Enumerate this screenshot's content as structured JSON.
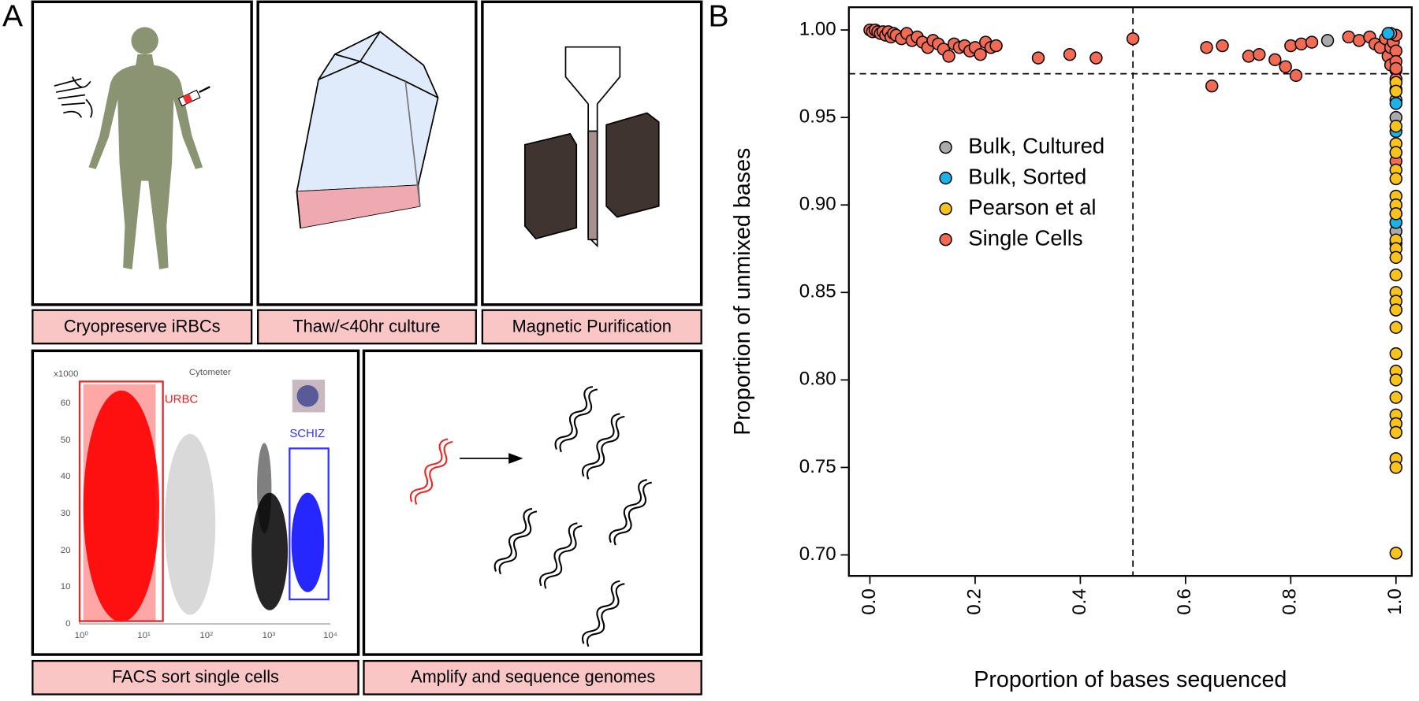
{
  "panel_a": {
    "label": "A",
    "steps": [
      "Cryopreserve iRBCs",
      "Thaw/<40hr culture",
      "Magnetic Purification",
      "FACS sort single cells",
      "Amplify and sequence genomes"
    ],
    "facs": {
      "title": "Cytometer",
      "multiplier": "x1000",
      "y_ticks": [
        "0",
        "10",
        "20",
        "30",
        "40",
        "50",
        "60"
      ],
      "x_ticks": [
        "10⁰",
        "10¹",
        "10²",
        "10³",
        "10⁴"
      ],
      "gates": [
        "URBC",
        "SCHIZ"
      ]
    }
  },
  "chart_data": {
    "type": "scatter",
    "panel_label": "B",
    "x_label": "Proportion of bases sequenced",
    "y_label": "Proportion of unmixed bases",
    "xlim": [
      -0.04,
      1.03
    ],
    "ylim": [
      0.688,
      1.013
    ],
    "xticks": [
      {
        "value": 0,
        "label": "0.0"
      },
      0.2,
      0.4,
      0.6,
      0.8,
      {
        "value": 1,
        "label": "1.0"
      }
    ],
    "yticks": [
      0.95,
      {
        "value": 0.9,
        "label": "0.90"
      },
      0.85,
      {
        "value": 0.8,
        "label": "0.80"
      },
      0.75,
      {
        "value": 0.7,
        "label": "0.70"
      },
      {
        "value": 1,
        "label": "1.00"
      }
    ],
    "reference_lines": {
      "x": 0.5,
      "y": 0.975
    },
    "legend": "upper left",
    "series": [
      {
        "name": "Bulk, Cultured",
        "color": "#aaaaaa",
        "x": [
          0.87,
          0.99,
          1.0,
          1.0,
          1.0,
          1.0
        ],
        "y": [
          0.994,
          0.998,
          0.96,
          0.95,
          0.885,
          0.878
        ]
      },
      {
        "name": "Bulk, Sorted",
        "color": "#1ab2e8",
        "x": [
          0.985,
          1.0,
          1.0,
          1.0,
          1.0
        ],
        "y": [
          0.998,
          0.942,
          0.895,
          0.89,
          0.958
        ]
      },
      {
        "name": "Pearson et al",
        "color": "#f9c31b",
        "x": [
          1,
          1,
          1,
          1,
          1,
          1,
          1,
          1,
          1,
          1,
          1,
          1,
          1,
          1,
          1,
          1,
          1,
          1,
          1,
          1,
          1,
          1,
          1,
          1,
          1,
          1,
          1,
          1
        ],
        "y": [
          0.97,
          0.965,
          0.945,
          0.935,
          0.93,
          0.92,
          0.915,
          0.905,
          0.9,
          0.895,
          0.88,
          0.875,
          0.87,
          0.86,
          0.85,
          0.845,
          0.84,
          0.83,
          0.815,
          0.805,
          0.8,
          0.79,
          0.78,
          0.775,
          0.77,
          0.755,
          0.75,
          0.701
        ]
      },
      {
        "name": "Single Cells",
        "color": "#f26a54",
        "x": [
          0.0,
          0.005,
          0.01,
          0.015,
          0.02,
          0.025,
          0.03,
          0.035,
          0.04,
          0.045,
          0.05,
          0.06,
          0.07,
          0.08,
          0.09,
          0.1,
          0.11,
          0.12,
          0.13,
          0.14,
          0.15,
          0.16,
          0.17,
          0.18,
          0.19,
          0.2,
          0.21,
          0.22,
          0.23,
          0.24,
          0.32,
          0.38,
          0.43,
          0.5,
          0.64,
          0.65,
          0.67,
          0.72,
          0.74,
          0.77,
          0.79,
          0.81,
          0.8,
          0.82,
          0.84,
          0.91,
          0.93,
          0.95,
          0.96,
          0.97,
          0.98,
          0.985,
          0.99,
          0.99,
          0.995,
          1.0,
          1.0,
          1.0,
          1.0,
          1.0,
          1.0,
          1.0,
          1.0,
          1.0,
          1.0,
          1.0
        ],
        "y": [
          1.0,
          0.999,
          1.0,
          0.999,
          0.998,
          0.999,
          0.997,
          0.999,
          0.996,
          0.998,
          0.997,
          0.995,
          0.998,
          0.994,
          0.996,
          0.993,
          0.99,
          0.994,
          0.992,
          0.989,
          0.985,
          0.992,
          0.99,
          0.991,
          0.988,
          0.99,
          0.986,
          0.993,
          0.99,
          0.991,
          0.984,
          0.986,
          0.984,
          0.995,
          0.99,
          0.968,
          0.991,
          0.985,
          0.986,
          0.983,
          0.979,
          0.974,
          0.991,
          0.992,
          0.993,
          0.996,
          0.994,
          0.996,
          0.992,
          0.99,
          0.995,
          0.985,
          0.99,
          0.98,
          0.993,
          0.997,
          0.988,
          0.982,
          0.977,
          0.972,
          0.966,
          0.93,
          0.925,
          0.89,
          0.84,
          0.978
        ]
      }
    ]
  }
}
